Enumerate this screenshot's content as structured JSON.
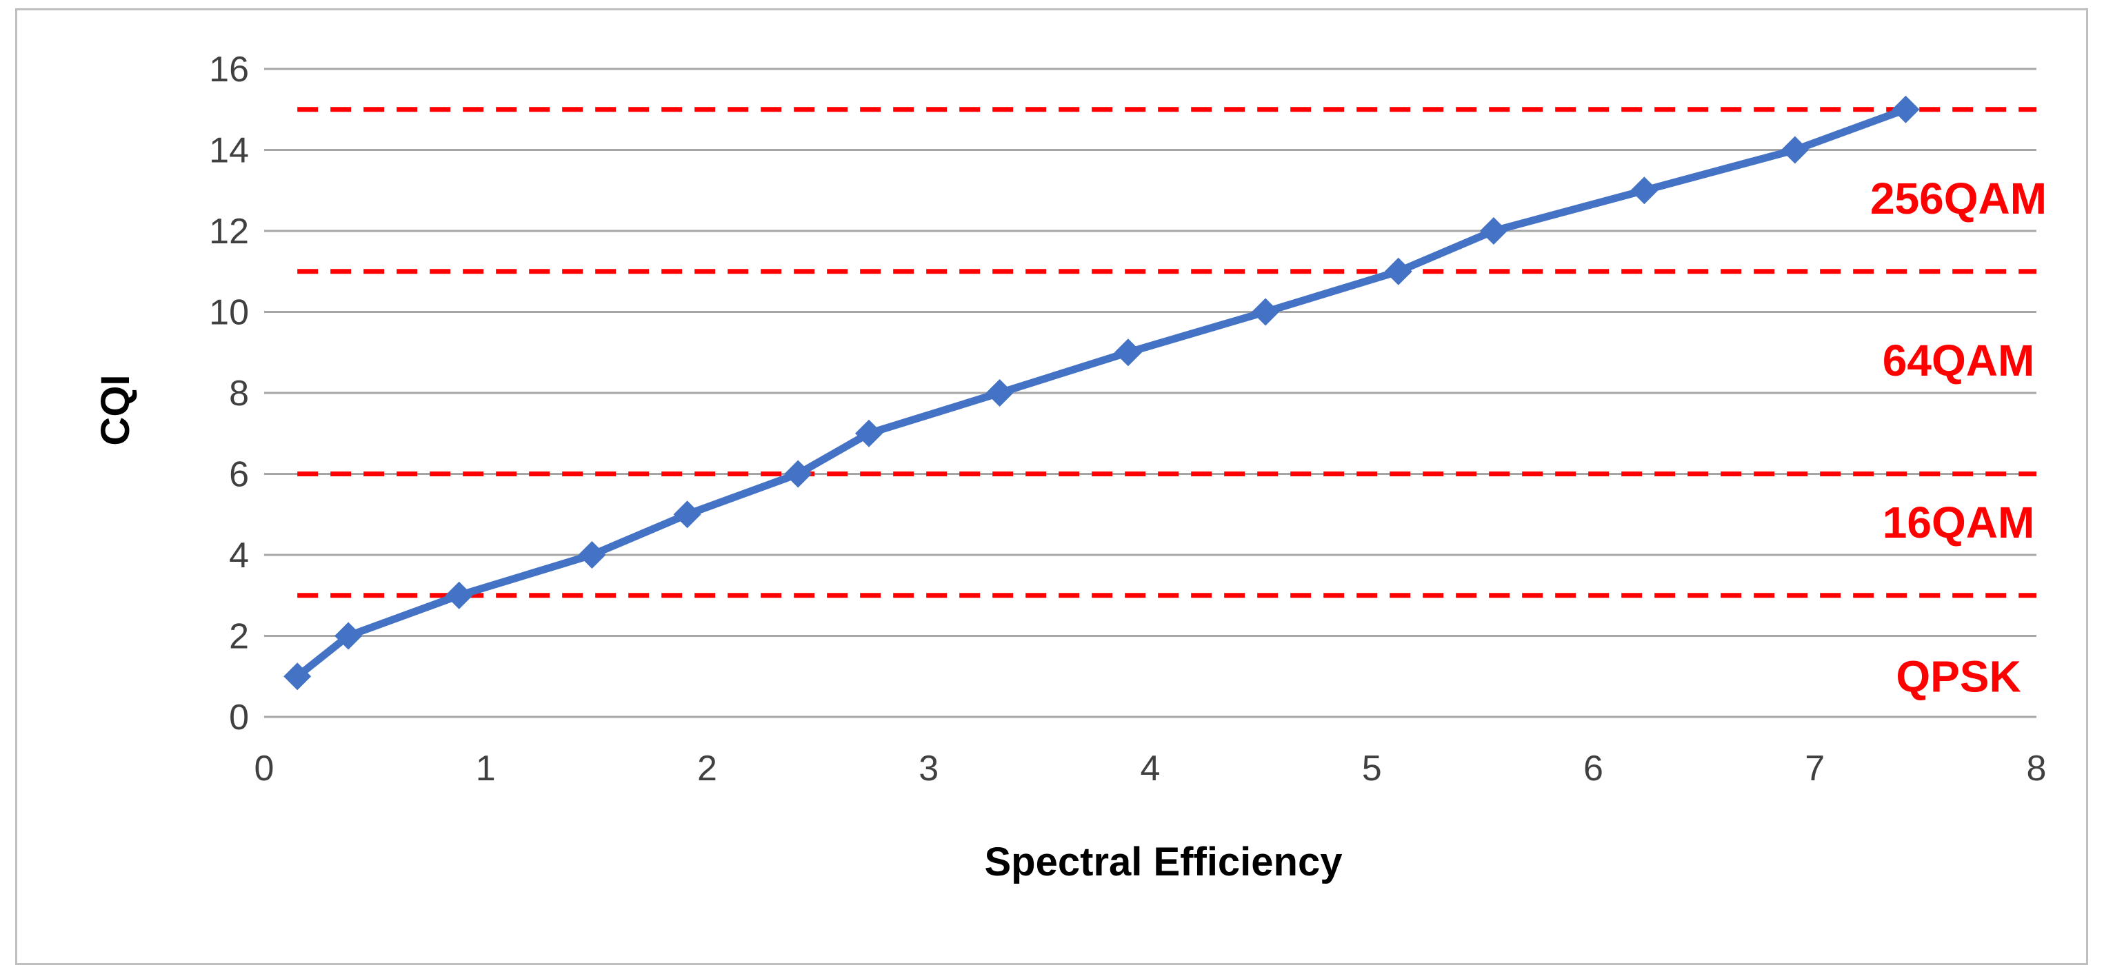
{
  "chart_data": {
    "type": "line",
    "xlabel": "Spectral Efficiency",
    "ylabel": "CQI",
    "xlim": [
      0,
      8
    ],
    "ylim": [
      0,
      16
    ],
    "xticks": [
      "0",
      "1",
      "2",
      "3",
      "4",
      "5",
      "6",
      "7",
      "8"
    ],
    "yticks": [
      "0",
      "2",
      "4",
      "6",
      "8",
      "10",
      "12",
      "14",
      "16"
    ],
    "grid": true,
    "series": [
      {
        "color": "#4472C4",
        "marker": "diamond",
        "x": [
          0.15,
          0.38,
          0.88,
          1.48,
          1.91,
          2.41,
          2.73,
          3.32,
          3.9,
          4.52,
          5.12,
          5.55,
          6.23,
          6.91,
          7.41
        ],
        "y": [
          1,
          2,
          3,
          4,
          5,
          6,
          7,
          8,
          9,
          10,
          11,
          12,
          13,
          14,
          15
        ]
      }
    ],
    "thresholds": [
      3,
      6,
      11,
      15
    ],
    "threshold_color": "#FF0000",
    "bands": [
      {
        "label": "QPSK",
        "y": 1
      },
      {
        "label": "16QAM",
        "y": 4.8
      },
      {
        "label": "64QAM",
        "y": 8.8
      },
      {
        "label": "256QAM",
        "y": 12.8
      }
    ]
  }
}
